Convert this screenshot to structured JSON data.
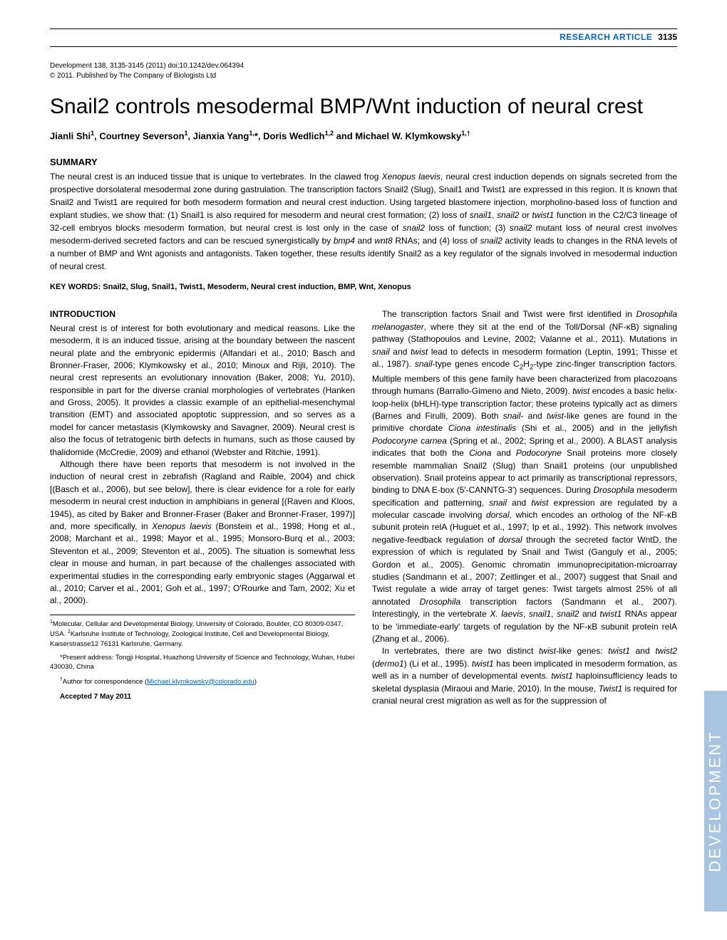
{
  "header": {
    "article_type": "RESEARCH ARTICLE",
    "page_number": "3135"
  },
  "citation": {
    "line1": "Development 138, 3135-3145 (2011) doi:10.1242/dev.064394",
    "line2": "© 2011. Published by The Company of Biologists Ltd"
  },
  "title": "Snail2 controls mesodermal BMP/Wnt induction of neural crest",
  "authors_html": "Jianli Shi<sup>1</sup>, Courtney Severson<sup>1</sup>, Jianxia Yang<sup>1,</sup>*, Doris Wedlich<sup>1,2</sup> and Michael W. Klymkowsky<sup>1,†</sup>",
  "summary": {
    "heading": "SUMMARY",
    "text_html": "The neural crest is an induced tissue that is unique to vertebrates. In the clawed frog <em>Xenopus laevis</em>, neural crest induction depends on signals secreted from the prospective dorsolateral mesodermal zone during gastrulation. The transcription factors Snail2 (Slug), Snail1 and Twist1 are expressed in this region. It is known that Snail2 and Twist1 are required for both mesoderm formation and neural crest induction. Using targeted blastomere injection, morpholino-based loss of function and explant studies, we show that: (1) Snail1 is also required for mesoderm and neural crest formation; (2) loss of <em>snail1</em>, <em>snail2</em> or <em>twist1</em> function in the C2/C3 lineage of 32-cell embryos blocks mesoderm formation, but neural crest is lost only in the case of <em>snail2</em> loss of function; (3) <em>snail2</em> mutant loss of neural crest involves mesoderm-derived secreted factors and can be rescued synergistically by <em>bmp4</em> and <em>wnt8</em> RNAs; and (4) loss of <em>snail2</em> activity leads to changes in the RNA levels of a number of BMP and Wnt agonists and antagonists. Taken together, these results identify Snail2 as a key regulator of the signals involved in mesodermal induction of neural crest."
  },
  "keywords": "KEY WORDS: Snail2, Slug, Snail1, Twist1, Mesoderm, Neural crest induction, BMP, Wnt, Xenopus",
  "introduction": {
    "heading": "INTRODUCTION",
    "col1_p1": "Neural crest is of interest for both evolutionary and medical reasons. Like the mesoderm, it is an induced tissue, arising at the boundary between the nascent neural plate and the embryonic epidermis (Alfandari et al., 2010; Basch and Bronner-Fraser, 2006; Klymkowsky et al., 2010; Minoux and Rijli, 2010). The neural crest represents an evolutionary innovation (Baker, 2008; Yu, 2010), responsible in part for the diverse cranial morphologies of vertebrates (Hanken and Gross, 2005). It provides a classic example of an epithelial-mesenchymal transition (EMT) and associated apoptotic suppression, and so serves as a model for cancer metastasis (Klymkowsky and Savagner, 2009). Neural crest is also the focus of tetratogenic birth defects in humans, such as those caused by thalidomide (McCredie, 2009) and ethanol (Webster and Ritchie, 1991).",
    "col1_p2_html": "Although there have been reports that mesoderm is not involved in the induction of neural crest in zebrafish (Ragland and Raible, 2004) and chick [(Basch et al., 2006), but see below], there is clear evidence for a role for early mesoderm in neural crest induction in amphibians in general [(Raven and Kloos, 1945), as cited by Baker and Bronner-Fraser (Baker and Bronner-Fraser, 1997)] and, more specifically, in <em>Xenopus laevis</em> (Bonstein et al., 1998; Hong et al., 2008; Marchant et al., 1998; Mayor et al., 1995; Monsoro-Burq et al., 2003; Steventon et al., 2009; Steventon et al., 2005). The situation is somewhat less clear in mouse and human, in part because of the challenges associated with experimental studies in the corresponding early embryonic stages (Aggarwal et al., 2010; Carver et al., 2001; Goh et al., 1997; O'Rourke and Tam, 2002; Xu et al., 2000).",
    "col2_p1_html": "The transcription factors Snail and Twist were first identified in <em>Drosophila melanogaster</em>, where they sit at the end of the Toll/Dorsal (NF-κB) signaling pathway (Stathopoulos and Levine, 2002; Valanne et al., 2011). Mutations in <em>snail</em> and <em>twist</em> lead to defects in mesoderm formation (Leptin, 1991; Thisse et al., 1987). <em>snail</em>-type genes encode C<sub>2</sub>H<sub>2</sub>-type zinc-finger transcription factors. Multiple members of this gene family have been characterized from placozoans through humans (Barrallo-Gimeno and Nieto, 2009). <em>twist</em> encodes a basic helix-loop-helix (bHLH)-type transcription factor; these proteins typically act as dimers (Barnes and Firulli, 2009). Both <em>snail</em>- and <em>twist</em>-like genes are found in the primitive chordate <em>Ciona intestinalis</em> (Shi et al., 2005) and in the jellyfish <em>Podocoryne carnea</em> (Spring et al., 2002; Spring et al., 2000). A BLAST analysis indicates that both the <em>Ciona</em> and <em>Podocoryne</em> Snail proteins more closely resemble mammalian Snail2 (Slug) than Snail1 proteins (our unpublished observation). Snail proteins appear to act primarily as transcriptional repressors, binding to DNA E-box (5′-CANNTG-3′) sequences. During <em>Drosophila</em> mesoderm specification and patterning, <em>snail</em> and <em>twist</em> expression are regulated by a molecular cascade involving <em>dorsal</em>, which encodes an ortholog of the NF-κB subunit protein relA (Huguet et al., 1997; Ip et al., 1992). This network involves negative-feedback regulation of <em>dorsal</em> through the secreted factor WntD, the expression of which is regulated by Snail and Twist (Ganguly et al., 2005; Gordon et al., 2005). Genomic chromatin immunoprecipitation-microarray studies (Sandmann et al., 2007; Zeitlinger et al., 2007) suggest that Snail and Twist regulate a wide array of target genes: Twist targets almost 25% of all annotated <em>Drosophila</em> transcription factors (Sandmann et al., 2007). Interestingly, in the vertebrate <em>X. laevis</em>, <em>snail1</em>, <em>snail2</em> and <em>twist1</em> RNAs appear to be 'immediate-early' targets of regulation by the NF-κB subunit protein relA (Zhang et al., 2006).",
    "col2_p2_html": "In vertebrates, there are two distinct <em>twist</em>-like genes: <em>twist1</em> and <em>twist2</em> (<em>dermo1</em>) (Li et al., 1995). <em>twist1</em> has been implicated in mesoderm formation, as well as in a number of developmental events. <em>twist1</em> haploinsufficiency leads to skeletal dysplasia (Miraoui and Marie, 2010). In the mouse, <em>Twist1</em> is required for cranial neural crest migration as well as for the suppression of"
  },
  "footnotes": {
    "affil1_html": "<sup>1</sup>Molecular, Cellular and Developmental Biology, University of Colorado, Boulder, CO 80309-0347, USA. <sup>2</sup>Karlsruhe Institute of Technology, Zoological Institute, Cell and Developmental Biology, Kaiserstrasse12 76131 Karlsruhe, Germany.",
    "present": "*Present address: Tongji Hospital, Huazhong University of Science and Technology, Wuhan, Hubei 430030, China",
    "corr_html": "<sup>†</sup>Author for correspondence (<a href=\"#\">Michael.klymkowsky@colorado.edu</a>)",
    "accepted": "Accepted 7 May 2011"
  },
  "side_tab": "DEVELOPMENT",
  "colors": {
    "link": "#0066cc",
    "tab_bg": "#a8c4e0",
    "tab_text": "#ffffff"
  }
}
